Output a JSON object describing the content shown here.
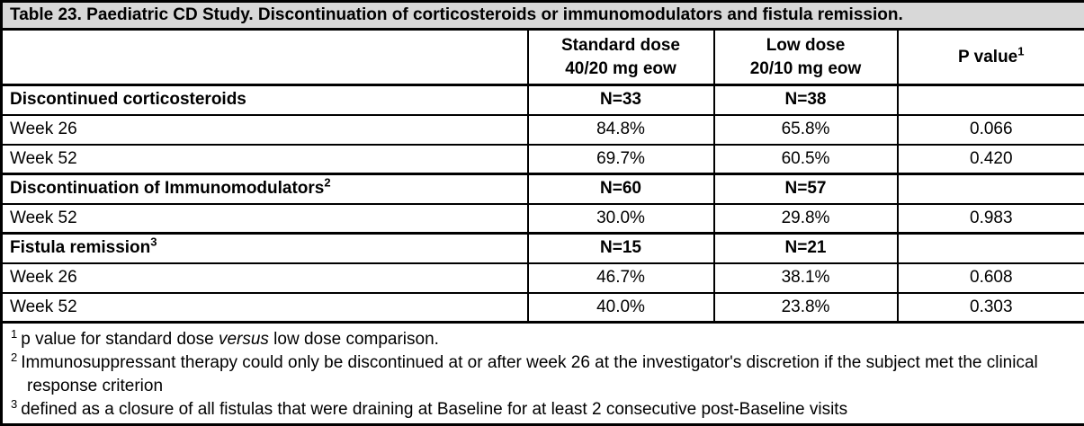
{
  "title": "Table 23. Paediatric CD Study. Discontinuation of corticosteroids or immunomodulators and fistula remission.",
  "header": {
    "standard_dose_line1": "Standard dose",
    "standard_dose_line2": "40/20 mg eow",
    "low_dose_line1": "Low dose",
    "low_dose_line2": "20/10 mg eow",
    "p_value_label": "P value",
    "p_value_sup": "1"
  },
  "rows": [
    {
      "label": "Discontinued corticosteroids",
      "sup": "",
      "standard": "N=33",
      "low": "N=38",
      "p": ""
    },
    {
      "label": "Week 26",
      "sup": "",
      "standard": "84.8%",
      "low": "65.8%",
      "p": "0.066"
    },
    {
      "label": "Week 52",
      "sup": "",
      "standard": "69.7%",
      "low": "60.5%",
      "p": "0.420"
    },
    {
      "label": "Discontinuation of Immunomodulators",
      "sup": "2",
      "standard": "N=60",
      "low": "N=57",
      "p": ""
    },
    {
      "label": "Week 52",
      "sup": "",
      "standard": "30.0%",
      "low": "29.8%",
      "p": "0.983"
    },
    {
      "label": "Fistula remission",
      "sup": "3",
      "standard": "N=15",
      "low": "N=21",
      "p": ""
    },
    {
      "label": "Week 26",
      "sup": "",
      "standard": "46.7%",
      "low": "38.1%",
      "p": "0.608"
    },
    {
      "label": "Week 52",
      "sup": "",
      "standard": "40.0%",
      "low": "23.8%",
      "p": "0.303"
    }
  ],
  "footnotes": [
    {
      "sup": "1",
      "pre": "p value for standard dose ",
      "italic": "versus",
      "post": " low dose comparison."
    },
    {
      "sup": "2",
      "pre": "Immunosuppressant therapy could only be discontinued at or after week 26 at the investigator's discretion if the subject met the clinical response criterion",
      "italic": "",
      "post": ""
    },
    {
      "sup": "3",
      "pre": "defined as a closure of all fistulas that were draining at Baseline for at least 2 consecutive post-Baseline visits",
      "italic": "",
      "post": ""
    }
  ],
  "colors": {
    "title_background": "#d8d8d8",
    "border": "#000000",
    "background": "#ffffff",
    "text": "#000000"
  }
}
